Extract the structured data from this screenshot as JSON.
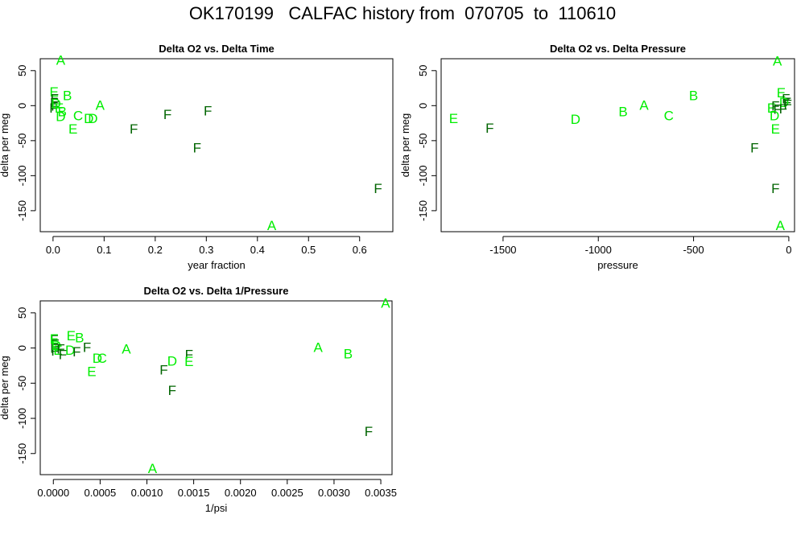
{
  "page": {
    "title": "OK170199   CALFAC history from  070705  to  110610"
  },
  "colors": {
    "dark": "#006400",
    "light": "#00ee00",
    "axis": "#000000"
  },
  "chart_data": [
    {
      "type": "scatter",
      "title": "Delta O2 vs. Delta Time",
      "xlabel": "year fraction",
      "ylabel": "delta per meg",
      "xlim": [
        -0.025,
        0.665
      ],
      "ylim": [
        -180,
        67
      ],
      "xticks": [
        {
          "v": 0.0,
          "t": "0.0"
        },
        {
          "v": 0.1,
          "t": "0.1"
        },
        {
          "v": 0.2,
          "t": "0.2"
        },
        {
          "v": 0.3,
          "t": "0.3"
        },
        {
          "v": 0.4,
          "t": "0.4"
        },
        {
          "v": 0.5,
          "t": "0.5"
        },
        {
          "v": 0.6,
          "t": "0.6"
        }
      ],
      "yticks": [
        {
          "v": 50,
          "t": "50"
        },
        {
          "v": 0,
          "t": "0"
        },
        {
          "v": -50,
          "t": "-50"
        },
        {
          "v": -100,
          "t": "-100"
        },
        {
          "v": -150,
          "t": "-150"
        }
      ],
      "points": [
        {
          "x": 0.015,
          "y": 65,
          "label": "A",
          "c": "light"
        },
        {
          "x": 0.002,
          "y": 20,
          "label": "E",
          "c": "light"
        },
        {
          "x": 0.028,
          "y": 15,
          "label": "B",
          "c": "light"
        },
        {
          "x": 0.003,
          "y": 10,
          "label": "F",
          "c": "dark"
        },
        {
          "x": 0.002,
          "y": 5,
          "label": "F",
          "c": "dark"
        },
        {
          "x": 0.004,
          "y": 0,
          "label": "F",
          "c": "dark"
        },
        {
          "x": 0.001,
          "y": -3,
          "label": "F",
          "c": "dark"
        },
        {
          "x": 0.006,
          "y": 3,
          "label": "D",
          "c": "light"
        },
        {
          "x": 0.012,
          "y": -3,
          "label": "E",
          "c": "light"
        },
        {
          "x": 0.018,
          "y": -8,
          "label": "B",
          "c": "light"
        },
        {
          "x": 0.015,
          "y": -15,
          "label": "D",
          "c": "light"
        },
        {
          "x": 0.049,
          "y": -14,
          "label": "C",
          "c": "light"
        },
        {
          "x": 0.07,
          "y": -18,
          "label": "D",
          "c": "light"
        },
        {
          "x": 0.078,
          "y": -18,
          "label": "D",
          "c": "light"
        },
        {
          "x": 0.039,
          "y": -33,
          "label": "E",
          "c": "light"
        },
        {
          "x": 0.092,
          "y": 1,
          "label": "A",
          "c": "light"
        },
        {
          "x": 0.158,
          "y": -33,
          "label": "F",
          "c": "dark"
        },
        {
          "x": 0.224,
          "y": -12,
          "label": "F",
          "c": "dark"
        },
        {
          "x": 0.303,
          "y": -7,
          "label": "F",
          "c": "dark"
        },
        {
          "x": 0.282,
          "y": -60,
          "label": "F",
          "c": "dark"
        },
        {
          "x": 0.428,
          "y": -171,
          "label": "A",
          "c": "light"
        },
        {
          "x": 0.636,
          "y": -118,
          "label": "F",
          "c": "dark"
        }
      ]
    },
    {
      "type": "scatter",
      "title": "Delta O2 vs. Delta Pressure",
      "xlabel": "pressure",
      "ylabel": "delta per meg",
      "xlim": [
        -1825,
        30
      ],
      "ylim": [
        -180,
        67
      ],
      "xticks": [
        {
          "v": -1500,
          "t": "-1500"
        },
        {
          "v": -1000,
          "t": "-1000"
        },
        {
          "v": -500,
          "t": "-500"
        },
        {
          "v": 0,
          "t": "0"
        }
      ],
      "yticks": [
        {
          "v": 50,
          "t": "50"
        },
        {
          "v": 0,
          "t": "0"
        },
        {
          "v": -50,
          "t": "-50"
        },
        {
          "v": -100,
          "t": "-100"
        },
        {
          "v": -150,
          "t": "-150"
        }
      ],
      "points": [
        {
          "x": -1760,
          "y": -18,
          "label": "E",
          "c": "light"
        },
        {
          "x": -1570,
          "y": -32,
          "label": "F",
          "c": "dark"
        },
        {
          "x": -1120,
          "y": -19,
          "label": "D",
          "c": "light"
        },
        {
          "x": -870,
          "y": -8,
          "label": "B",
          "c": "light"
        },
        {
          "x": -760,
          "y": 1,
          "label": "A",
          "c": "light"
        },
        {
          "x": -630,
          "y": -14,
          "label": "C",
          "c": "light"
        },
        {
          "x": -500,
          "y": 15,
          "label": "B",
          "c": "light"
        },
        {
          "x": -60,
          "y": 64,
          "label": "A",
          "c": "light"
        },
        {
          "x": -40,
          "y": 19,
          "label": "E",
          "c": "light"
        },
        {
          "x": -15,
          "y": 10,
          "label": "F",
          "c": "dark"
        },
        {
          "x": -8,
          "y": 5,
          "label": "F",
          "c": "dark"
        },
        {
          "x": -25,
          "y": 5,
          "label": "D",
          "c": "light"
        },
        {
          "x": -90,
          "y": -3,
          "label": "E",
          "c": "light"
        },
        {
          "x": -70,
          "y": 0,
          "label": "F",
          "c": "dark"
        },
        {
          "x": -60,
          "y": -5,
          "label": "F",
          "c": "dark"
        },
        {
          "x": -30,
          "y": -4,
          "label": "F",
          "c": "dark"
        },
        {
          "x": -5,
          "y": 2,
          "label": "F",
          "c": "dark"
        },
        {
          "x": -75,
          "y": -14,
          "label": "D",
          "c": "light"
        },
        {
          "x": -70,
          "y": -33,
          "label": "E",
          "c": "light"
        },
        {
          "x": -180,
          "y": -60,
          "label": "F",
          "c": "dark"
        },
        {
          "x": -70,
          "y": -118,
          "label": "F",
          "c": "dark"
        },
        {
          "x": -45,
          "y": -171,
          "label": "A",
          "c": "light"
        }
      ]
    },
    {
      "type": "scatter",
      "title": "Delta O2 vs. Delta 1/Pressure",
      "xlabel": "1/psi",
      "ylabel": "delta per meg",
      "xlim": [
        -0.00014,
        0.00362
      ],
      "ylim": [
        -180,
        67
      ],
      "xticks": [
        {
          "v": 0.0,
          "t": "0.0000"
        },
        {
          "v": 0.0005,
          "t": "0.0005"
        },
        {
          "v": 0.001,
          "t": "0.0010"
        },
        {
          "v": 0.0015,
          "t": "0.0015"
        },
        {
          "v": 0.002,
          "t": "0.0020"
        },
        {
          "v": 0.0025,
          "t": "0.0025"
        },
        {
          "v": 0.003,
          "t": "0.0030"
        },
        {
          "v": 0.0035,
          "t": "0.0035"
        }
      ],
      "yticks": [
        {
          "v": 50,
          "t": "50"
        },
        {
          "v": 0,
          "t": "0"
        },
        {
          "v": -50,
          "t": "-50"
        },
        {
          "v": -100,
          "t": "-100"
        },
        {
          "v": -150,
          "t": "-150"
        }
      ],
      "points": [
        {
          "x": 1e-05,
          "y": 12,
          "label": "F",
          "c": "dark"
        },
        {
          "x": 2e-05,
          "y": 6,
          "label": "F",
          "c": "dark"
        },
        {
          "x": 1e-05,
          "y": 0,
          "label": "F",
          "c": "dark"
        },
        {
          "x": 2e-05,
          "y": -4,
          "label": "F",
          "c": "dark"
        },
        {
          "x": 1e-05,
          "y": 13,
          "label": "E",
          "c": "light"
        },
        {
          "x": 3e-05,
          "y": 4,
          "label": "D",
          "c": "light"
        },
        {
          "x": 5e-05,
          "y": -3,
          "label": "E",
          "c": "light"
        },
        {
          "x": 8e-05,
          "y": -1,
          "label": "F",
          "c": "dark"
        },
        {
          "x": 0.0001,
          "y": -9,
          "label": "F",
          "c": "dark"
        },
        {
          "x": 0.00018,
          "y": -3,
          "label": "D",
          "c": "light"
        },
        {
          "x": 0.00025,
          "y": -5,
          "label": "F",
          "c": "dark"
        },
        {
          "x": 0.00019,
          "y": 18,
          "label": "E",
          "c": "light"
        },
        {
          "x": 0.00028,
          "y": 15,
          "label": "B",
          "c": "light"
        },
        {
          "x": 0.00036,
          "y": 1,
          "label": "F",
          "c": "dark"
        },
        {
          "x": 0.00047,
          "y": -14,
          "label": "D",
          "c": "light"
        },
        {
          "x": 0.00052,
          "y": -14,
          "label": "C",
          "c": "light"
        },
        {
          "x": 0.00041,
          "y": -33,
          "label": "E",
          "c": "light"
        },
        {
          "x": 0.00078,
          "y": -1,
          "label": "A",
          "c": "light"
        },
        {
          "x": 0.00118,
          "y": -31,
          "label": "F",
          "c": "dark"
        },
        {
          "x": 0.00127,
          "y": -18,
          "label": "D",
          "c": "light"
        },
        {
          "x": 0.00145,
          "y": -9,
          "label": "F",
          "c": "dark"
        },
        {
          "x": 0.00145,
          "y": -19,
          "label": "E",
          "c": "light"
        },
        {
          "x": 0.00127,
          "y": -60,
          "label": "F",
          "c": "dark"
        },
        {
          "x": 0.00106,
          "y": -171,
          "label": "A",
          "c": "light"
        },
        {
          "x": 0.00283,
          "y": 1,
          "label": "A",
          "c": "light"
        },
        {
          "x": 0.00315,
          "y": -8,
          "label": "B",
          "c": "light"
        },
        {
          "x": 0.00337,
          "y": -118,
          "label": "F",
          "c": "dark"
        },
        {
          "x": 0.00355,
          "y": 64,
          "label": "A",
          "c": "light"
        }
      ]
    }
  ]
}
